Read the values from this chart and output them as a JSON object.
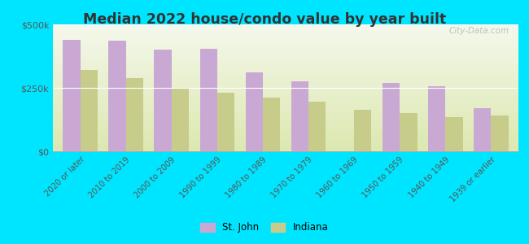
{
  "title": "Median 2022 house/condo value by year built",
  "categories": [
    "2020 or later",
    "2010 to 2019",
    "2000 to 2009",
    "1990 to 1999",
    "1980 to 1989",
    "1970 to 1979",
    "1960 to 1969",
    "1950 to 1959",
    "1940 to 1949",
    "1939 or earlier"
  ],
  "st_john": [
    440000,
    435000,
    400000,
    405000,
    310000,
    275000,
    0,
    270000,
    255000,
    170000
  ],
  "indiana": [
    320000,
    290000,
    250000,
    230000,
    210000,
    195000,
    165000,
    150000,
    135000,
    140000
  ],
  "bar_color_sj": "#c9a8d4",
  "bar_color_in": "#c8cc8a",
  "outer_background": "#00e5ff",
  "title_color": "#333333",
  "ylabel_ticks": [
    0,
    250000,
    500000
  ],
  "ylabel_labels": [
    "$0",
    "$250k",
    "$500k"
  ],
  "legend_labels": [
    "St. John",
    "Indiana"
  ],
  "watermark": "City-Data.com",
  "grad_top": "#f5f8ec",
  "grad_bottom": "#dce8b0"
}
